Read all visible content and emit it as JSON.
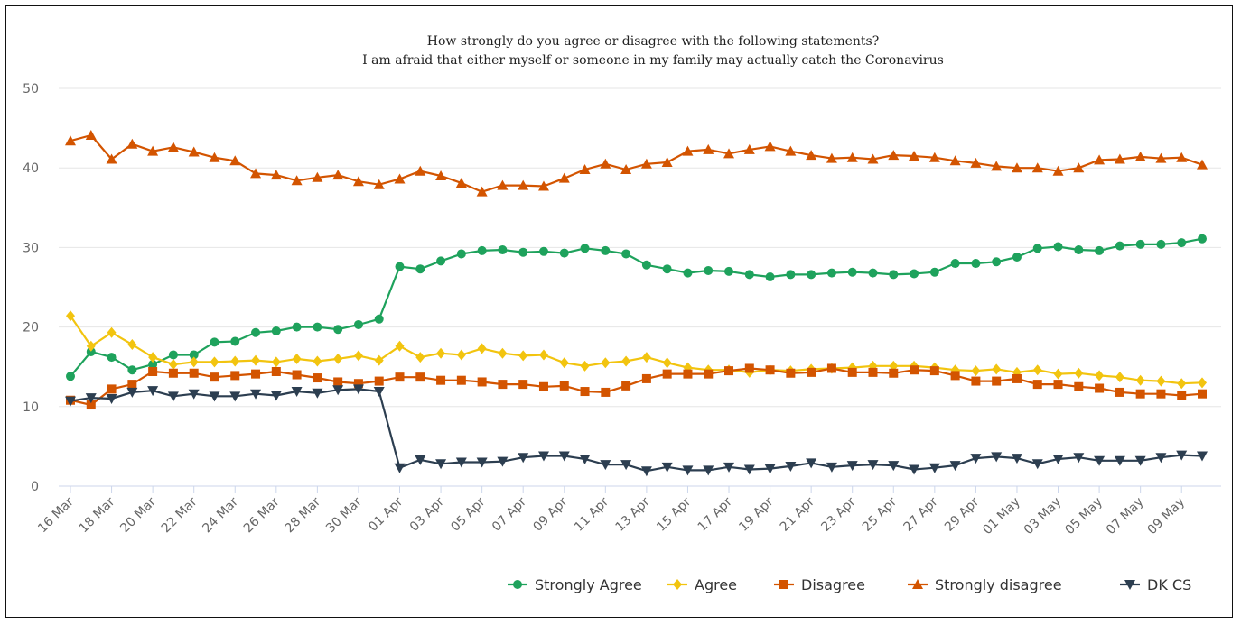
{
  "chart_data": {
    "type": "line",
    "title": "How strongly do you agree or disagree with the following statements?",
    "subtitle": "I am afraid that either myself or someone in my family may actually catch the Coronavirus",
    "ylim": [
      0,
      50
    ],
    "yticks": [
      0,
      10,
      20,
      30,
      40,
      50
    ],
    "grid": true,
    "legend_position": "bottom-right",
    "x": [
      "16 Mar",
      "17 Mar",
      "18 Mar",
      "19 Mar",
      "20 Mar",
      "21 Mar",
      "22 Mar",
      "23 Mar",
      "24 Mar",
      "25 Mar",
      "26 Mar",
      "27 Mar",
      "28 Mar",
      "29 Mar",
      "30 Mar",
      "31 Mar",
      "01 Apr",
      "02 Apr",
      "03 Apr",
      "04 Apr",
      "05 Apr",
      "06 Apr",
      "07 Apr",
      "08 Apr",
      "09 Apr",
      "10 Apr",
      "11 Apr",
      "12 Apr",
      "13 Apr",
      "14 Apr",
      "15 Apr",
      "16 Apr",
      "17 Apr",
      "18 Apr",
      "19 Apr",
      "20 Apr",
      "21 Apr",
      "22 Apr",
      "23 Apr",
      "24 Apr",
      "25 Apr",
      "26 Apr",
      "27 Apr",
      "28 Apr",
      "29 Apr",
      "30 Apr",
      "01 May",
      "02 May",
      "03 May",
      "04 May",
      "05 May",
      "06 May",
      "07 May",
      "08 May",
      "09 May",
      "10 May"
    ],
    "x_tick_labels": [
      "16 Mar",
      "18 Mar",
      "20 Mar",
      "22 Mar",
      "24 Mar",
      "26 Mar",
      "28 Mar",
      "30 Mar",
      "01 Apr",
      "03 Apr",
      "05 Apr",
      "07 Apr",
      "09 Apr",
      "11 Apr",
      "13 Apr",
      "15 Apr",
      "17 Apr",
      "19 Apr",
      "21 Apr",
      "23 Apr",
      "25 Apr",
      "27 Apr",
      "29 Apr",
      "01 May",
      "03 May",
      "05 May",
      "07 May",
      "09 May"
    ],
    "series": [
      {
        "name": "Strongly Agree",
        "color": "#1ea25c",
        "marker": "circle",
        "values": [
          13.8,
          16.9,
          16.2,
          14.6,
          15.3,
          16.5,
          16.5,
          18.1,
          18.2,
          19.3,
          19.5,
          20.0,
          20.0,
          19.7,
          20.3,
          21.0,
          27.6,
          27.3,
          28.3,
          29.2,
          29.6,
          29.7,
          29.4,
          29.5,
          29.3,
          29.9,
          29.6,
          29.2,
          27.8,
          27.3,
          26.8,
          27.1,
          27.0,
          26.6,
          26.3,
          26.6,
          26.6,
          26.8,
          26.9,
          26.8,
          26.6,
          26.7,
          26.9,
          28.0,
          28.0,
          28.2,
          28.8,
          29.9,
          30.1,
          29.7,
          29.6,
          30.2,
          30.4,
          30.4,
          30.6,
          31.1
        ]
      },
      {
        "name": "Agree",
        "color": "#f2c40f",
        "marker": "diamond",
        "values": [
          21.4,
          17.6,
          19.3,
          17.8,
          16.2,
          15.3,
          15.6,
          15.6,
          15.7,
          15.8,
          15.6,
          16.0,
          15.7,
          16.0,
          16.4,
          15.8,
          17.6,
          16.2,
          16.7,
          16.5,
          17.3,
          16.7,
          16.4,
          16.5,
          15.5,
          15.1,
          15.5,
          15.7,
          16.2,
          15.5,
          14.9,
          14.6,
          14.6,
          14.3,
          14.6,
          14.5,
          14.7,
          14.8,
          14.9,
          15.1,
          15.1,
          15.1,
          14.9,
          14.6,
          14.5,
          14.7,
          14.3,
          14.6,
          14.1,
          14.2,
          13.9,
          13.7,
          13.3,
          13.2,
          12.9,
          13.0
        ]
      },
      {
        "name": "Disagree",
        "color": "#d35400",
        "marker": "square",
        "values": [
          10.8,
          10.2,
          12.2,
          12.8,
          14.4,
          14.2,
          14.2,
          13.7,
          13.9,
          14.1,
          14.4,
          14.0,
          13.6,
          13.1,
          12.9,
          13.2,
          13.7,
          13.7,
          13.3,
          13.3,
          13.1,
          12.8,
          12.8,
          12.5,
          12.6,
          11.9,
          11.8,
          12.6,
          13.5,
          14.1,
          14.1,
          14.1,
          14.5,
          14.8,
          14.6,
          14.2,
          14.3,
          14.8,
          14.3,
          14.3,
          14.2,
          14.6,
          14.5,
          13.9,
          13.2,
          13.2,
          13.5,
          12.8,
          12.8,
          12.5,
          12.3,
          11.8,
          11.6,
          11.6,
          11.4,
          11.6
        ]
      },
      {
        "name": "Strongly disagree",
        "color": "#d35400",
        "marker": "triangle-up",
        "values": [
          43.4,
          44.1,
          41.1,
          43.0,
          42.1,
          42.6,
          42.0,
          41.3,
          40.9,
          39.3,
          39.1,
          38.4,
          38.8,
          39.1,
          38.3,
          37.9,
          38.6,
          39.6,
          39.0,
          38.1,
          37.0,
          37.8,
          37.8,
          37.7,
          38.7,
          39.8,
          40.5,
          39.8,
          40.5,
          40.7,
          42.1,
          42.3,
          41.8,
          42.3,
          42.7,
          42.1,
          41.6,
          41.2,
          41.3,
          41.1,
          41.6,
          41.5,
          41.3,
          40.9,
          40.6,
          40.2,
          40.0,
          40.0,
          39.6,
          40.0,
          41.0,
          41.1,
          41.4,
          41.2,
          41.3,
          40.4
        ]
      },
      {
        "name": "DK CS",
        "color": "#2c3e50",
        "marker": "triangle-down",
        "values": [
          10.7,
          11.1,
          11.0,
          11.8,
          12.0,
          11.3,
          11.6,
          11.3,
          11.3,
          11.6,
          11.4,
          11.9,
          11.7,
          12.1,
          12.2,
          11.9,
          2.3,
          3.3,
          2.8,
          3.0,
          3.0,
          3.1,
          3.6,
          3.8,
          3.8,
          3.4,
          2.7,
          2.7,
          1.9,
          2.4,
          2.0,
          2.0,
          2.4,
          2.1,
          2.2,
          2.5,
          2.9,
          2.4,
          2.6,
          2.7,
          2.6,
          2.1,
          2.3,
          2.6,
          3.5,
          3.7,
          3.5,
          2.8,
          3.4,
          3.6,
          3.2,
          3.2,
          3.2,
          3.6,
          3.9,
          3.8
        ]
      }
    ]
  }
}
